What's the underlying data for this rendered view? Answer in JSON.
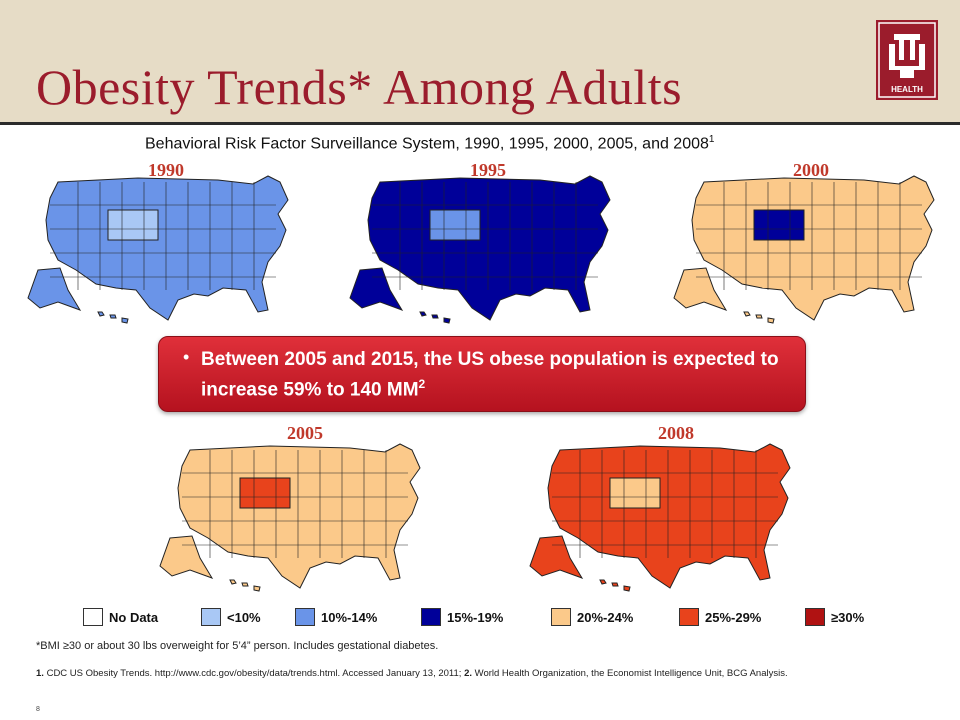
{
  "title": "Obesity Trends* Among Adults",
  "logo": {
    "icon": "iu-health-logo",
    "text": "HEALTH"
  },
  "subtitle": {
    "text": "Behavioral Risk Factor Surveillance System, 1990, 1995, 2000, 2005, and 2008",
    "sup": "1"
  },
  "maps": [
    {
      "year": "1990",
      "fill": "#6a94e8",
      "highlight": "#a9c8f5"
    },
    {
      "year": "1995",
      "fill": "#000099",
      "highlight": "#6a94e8"
    },
    {
      "year": "2000",
      "fill": "#fbc98a",
      "highlight": "#000099"
    },
    {
      "year": "2005",
      "fill": "#fbc98a",
      "highlight": "#e8431c"
    },
    {
      "year": "2008",
      "fill": "#e8431c",
      "highlight": "#fbc98a"
    }
  ],
  "callout": {
    "bullet": "•",
    "text": "Between 2005 and 2015, the US obese population is expected to increase 59% to 140 MM",
    "sup": "2"
  },
  "legend": [
    {
      "label": "No Data",
      "color": "#ffffff"
    },
    {
      "label": "<10%",
      "color": "#a9c8f5"
    },
    {
      "label": "10%-14%",
      "color": "#6a94e8"
    },
    {
      "label": "15%-19%",
      "color": "#000099"
    },
    {
      "label": "20%-24%",
      "color": "#fbc98a"
    },
    {
      "label": "25%-29%",
      "color": "#e8431c"
    },
    {
      "label": "≥30%",
      "color": "#b01212"
    }
  ],
  "footnote": "*BMI ≥30 or about 30 lbs overweight for 5’4” person. Includes gestational diabetes.",
  "references": {
    "n1": "1.",
    "r1": " CDC US Obesity Trends. http://www.cdc.gov/obesity/data/trends.html. Accessed January 13, 2011; ",
    "n2": "2.",
    "r2": " World Health Organization, the Economist Intelligence Unit, BCG Analysis."
  },
  "page_number": "8"
}
